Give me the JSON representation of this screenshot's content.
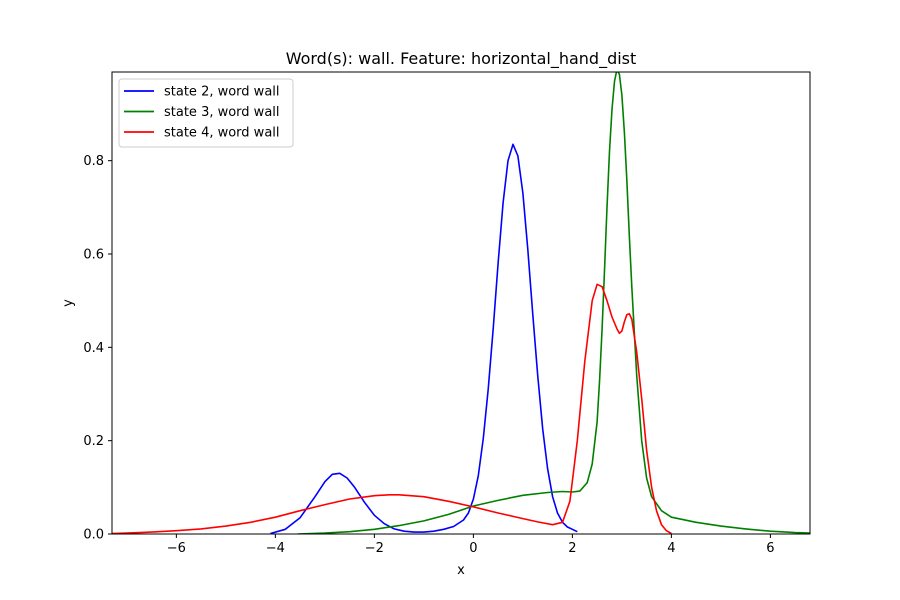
{
  "chart_data": {
    "type": "line",
    "title": "Word(s): wall. Feature: horizontal_hand_dist",
    "xlabel": "x",
    "ylabel": "y",
    "xlim": [
      -7.3,
      6.8
    ],
    "ylim": [
      0,
      0.99
    ],
    "xticks": [
      -6,
      -4,
      -2,
      0,
      2,
      4,
      6
    ],
    "xtick_labels": [
      "−6",
      "−4",
      "−2",
      "0",
      "2",
      "4",
      "6"
    ],
    "yticks": [
      0.0,
      0.2,
      0.4,
      0.6,
      0.8
    ],
    "ytick_labels": [
      "0.0",
      "0.2",
      "0.4",
      "0.6",
      "0.8"
    ],
    "grid": false,
    "legend_position": "upper left",
    "series": [
      {
        "name": "state 2, word wall",
        "color": "#0000ff",
        "x": [
          -4.1,
          -3.8,
          -3.5,
          -3.2,
          -3.0,
          -2.85,
          -2.7,
          -2.55,
          -2.4,
          -2.2,
          -2.0,
          -1.8,
          -1.6,
          -1.4,
          -1.2,
          -1.0,
          -0.8,
          -0.6,
          -0.4,
          -0.2,
          -0.1,
          0.0,
          0.1,
          0.2,
          0.3,
          0.4,
          0.5,
          0.6,
          0.7,
          0.8,
          0.9,
          1.0,
          1.1,
          1.2,
          1.3,
          1.4,
          1.5,
          1.6,
          1.7,
          1.8,
          1.9,
          2.0,
          2.1
        ],
        "y": [
          0.001,
          0.01,
          0.035,
          0.08,
          0.112,
          0.128,
          0.13,
          0.12,
          0.1,
          0.068,
          0.04,
          0.022,
          0.011,
          0.006,
          0.004,
          0.004,
          0.006,
          0.01,
          0.016,
          0.03,
          0.045,
          0.075,
          0.125,
          0.205,
          0.31,
          0.44,
          0.58,
          0.71,
          0.8,
          0.835,
          0.81,
          0.73,
          0.61,
          0.47,
          0.34,
          0.225,
          0.14,
          0.08,
          0.045,
          0.025,
          0.015,
          0.01,
          0.005
        ]
      },
      {
        "name": "state 3, word wall",
        "color": "#008000",
        "x": [
          -3.55,
          -3.0,
          -2.5,
          -2.0,
          -1.5,
          -1.0,
          -0.5,
          0.0,
          0.5,
          1.0,
          1.5,
          1.8,
          2.0,
          2.15,
          2.3,
          2.4,
          2.5,
          2.55,
          2.6,
          2.65,
          2.7,
          2.75,
          2.8,
          2.85,
          2.9,
          2.95,
          3.0,
          3.05,
          3.1,
          3.15,
          3.2,
          3.3,
          3.4,
          3.5,
          3.6,
          3.8,
          4.0,
          4.5,
          5.0,
          5.5,
          6.0,
          6.5,
          6.8
        ],
        "y": [
          0.0,
          0.002,
          0.005,
          0.01,
          0.018,
          0.028,
          0.042,
          0.06,
          0.072,
          0.083,
          0.089,
          0.091,
          0.09,
          0.092,
          0.11,
          0.15,
          0.24,
          0.33,
          0.44,
          0.57,
          0.7,
          0.82,
          0.91,
          0.97,
          0.995,
          0.985,
          0.94,
          0.86,
          0.76,
          0.64,
          0.53,
          0.34,
          0.2,
          0.12,
          0.08,
          0.05,
          0.036,
          0.025,
          0.017,
          0.011,
          0.006,
          0.003,
          0.002
        ]
      },
      {
        "name": "state 4, word wall",
        "color": "#ff0000",
        "x": [
          -7.3,
          -7.0,
          -6.5,
          -6.0,
          -5.5,
          -5.0,
          -4.5,
          -4.0,
          -3.5,
          -3.0,
          -2.5,
          -2.0,
          -1.7,
          -1.5,
          -1.0,
          -0.5,
          0.0,
          0.5,
          1.0,
          1.3,
          1.6,
          1.8,
          1.95,
          2.1,
          2.25,
          2.4,
          2.5,
          2.6,
          2.7,
          2.8,
          2.9,
          2.95,
          3.0,
          3.05,
          3.1,
          3.15,
          3.2,
          3.3,
          3.4,
          3.5,
          3.6,
          3.7,
          3.8,
          3.9,
          4.0
        ],
        "y": [
          0.001,
          0.002,
          0.004,
          0.007,
          0.011,
          0.017,
          0.025,
          0.036,
          0.05,
          0.063,
          0.075,
          0.082,
          0.084,
          0.084,
          0.08,
          0.07,
          0.058,
          0.045,
          0.033,
          0.026,
          0.02,
          0.025,
          0.07,
          0.2,
          0.37,
          0.5,
          0.535,
          0.53,
          0.5,
          0.465,
          0.44,
          0.43,
          0.435,
          0.455,
          0.47,
          0.472,
          0.46,
          0.39,
          0.29,
          0.18,
          0.1,
          0.05,
          0.02,
          0.007,
          0.001
        ]
      }
    ]
  }
}
